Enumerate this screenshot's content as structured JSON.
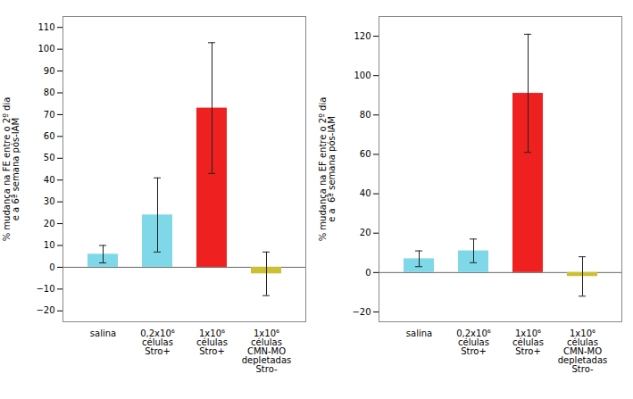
{
  "chart_data": [
    {
      "type": "bar",
      "ylabel": "% mudança na FE entre o 2º dia\ne a 6ª semana pós-IAM",
      "categories": [
        "salina",
        "0,2x10⁶\ncélulas\nStro+",
        "1x10⁶\ncélulas\nStro+",
        "1x10⁶\ncélulas\nCMN-MO\ndepletadas\nStro-"
      ],
      "values": [
        6,
        24,
        73,
        -3
      ],
      "errors": [
        4,
        17,
        30,
        10
      ],
      "colors": [
        "#7fd8e8",
        "#7fd8e8",
        "#ee2020",
        "#ccc030"
      ],
      "ylim": [
        -25,
        115
      ],
      "yticks": [
        -20,
        -10,
        0,
        10,
        20,
        30,
        40,
        50,
        60,
        70,
        80,
        90,
        100,
        110
      ],
      "grid": false
    },
    {
      "type": "bar",
      "ylabel": "% mudança na EF entre o 2º dia\ne a  6ª semana pós-IAM",
      "categories": [
        "salina",
        "0,2x10⁶\ncélulas\nStro+",
        "1x10⁶\ncélulas\nStro+",
        "1x10⁶\ncélulas\nCMN-MO\ndepletadas\nStro-"
      ],
      "values": [
        7,
        11,
        91,
        -2
      ],
      "errors": [
        4,
        6,
        30,
        10
      ],
      "colors": [
        "#7fd8e8",
        "#7fd8e8",
        "#ee2020",
        "#ccc030"
      ],
      "ylim": [
        -25,
        130
      ],
      "yticks": [
        -20,
        0,
        20,
        40,
        60,
        80,
        100,
        120
      ],
      "grid": false
    }
  ]
}
